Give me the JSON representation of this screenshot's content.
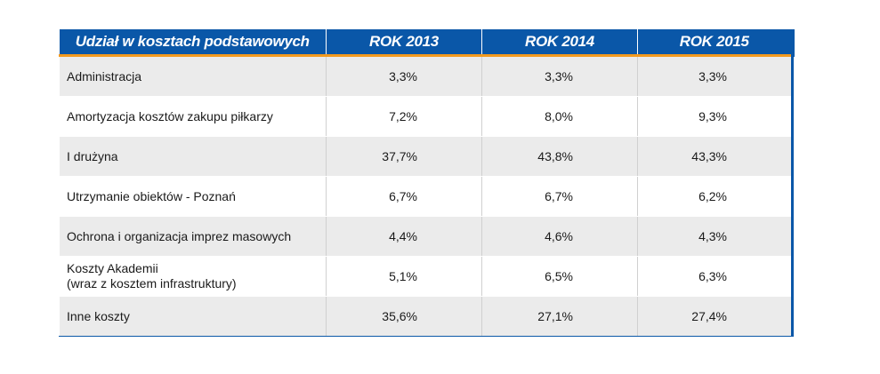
{
  "table": {
    "headers": [
      "Udział w kosztach podstawowych",
      "ROK 2013",
      "ROK 2014",
      "ROK 2015"
    ],
    "rows": [
      {
        "label": [
          "Administracja"
        ],
        "values": [
          "3,3%",
          "3,3%",
          "3,3%"
        ]
      },
      {
        "label": [
          "Amortyzacja kosztów zakupu piłkarzy"
        ],
        "values": [
          "7,2%",
          "8,0%",
          "9,3%"
        ]
      },
      {
        "label": [
          "I drużyna"
        ],
        "values": [
          "37,7%",
          "43,8%",
          "43,3%"
        ]
      },
      {
        "label": [
          "Utrzymanie obiektów - Poznań"
        ],
        "values": [
          "6,7%",
          "6,7%",
          "6,2%"
        ]
      },
      {
        "label": [
          "Ochrona i organizacja imprez masowych"
        ],
        "values": [
          "4,4%",
          "4,6%",
          "4,3%"
        ]
      },
      {
        "label": [
          "Koszty Akademii",
          "(wraz z kosztem infrastruktury)"
        ],
        "values": [
          "5,1%",
          "6,5%",
          "6,3%"
        ]
      },
      {
        "label": [
          "Inne koszty"
        ],
        "values": [
          "35,6%",
          "27,1%",
          "27,4%"
        ]
      }
    ]
  },
  "colors": {
    "header_bg": "#0a57a8",
    "header_text": "#ffffff",
    "header_underline": "#f39a1e",
    "row_alt_bg": "#ebebeb",
    "border_accent": "#0a57a8"
  }
}
